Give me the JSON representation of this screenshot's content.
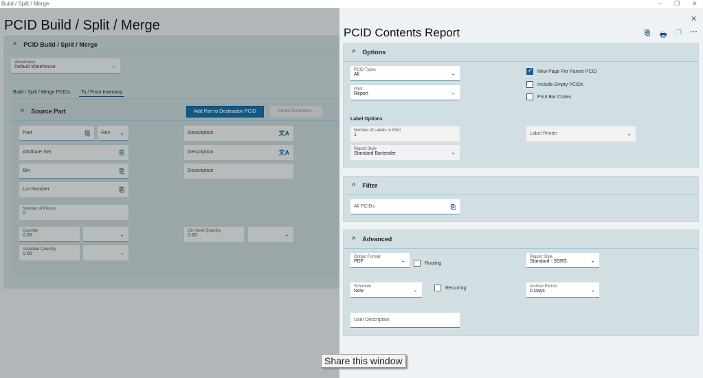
{
  "titlebar": {
    "title": "Build / Split / Merge",
    "minimize": "–",
    "maximize": "❐",
    "close": "✕"
  },
  "left": {
    "page_title": "PCID Build / Split / Merge",
    "section_title": "PCID Build / Split / Merge",
    "warehouse": {
      "label": "Warehouse",
      "value": "Default Warehouse"
    },
    "tabs": [
      {
        "label": "Build / Split / Merge PCIDs"
      },
      {
        "label": "To / From Inventory"
      }
    ],
    "source": {
      "title": "Source Part",
      "add_button": "Add Part to Destination PCID",
      "serial_button": "Serial Numbers...",
      "part": "Part",
      "rev": "Rev",
      "attribute_set": "Attribute Set",
      "bin": "Bin",
      "lot": "Lot Number",
      "descriptions": [
        "Description",
        "Description",
        "Description"
      ],
      "pieces": {
        "label": "Number of Pieces",
        "value": "0"
      },
      "quantity": {
        "label": "Quantity",
        "value": "0.00"
      },
      "available": {
        "label": "Available Quantity",
        "value": "0.00"
      },
      "onhand": {
        "label": "On Hand Quantity",
        "value": "0.00"
      }
    }
  },
  "report": {
    "title": "PCID Contents Report",
    "close": "✕",
    "options": {
      "title": "Options",
      "pcid_types": {
        "label": "PCID Types",
        "value": "All"
      },
      "print": {
        "label": "Print",
        "value": "Report"
      },
      "checkboxes": [
        {
          "label": "New Page Per Parent PCID",
          "checked": true
        },
        {
          "label": "Include Empty PCIDs",
          "checked": false
        },
        {
          "label": "Print Bar Codes",
          "checked": false
        }
      ],
      "label_options": "Label Options",
      "num_labels": {
        "label": "Number of Labels to Print",
        "value": "1"
      },
      "report_style": {
        "label": "Report Style",
        "value": "Standard Bartender"
      },
      "label_printer": "Label Printer"
    },
    "filter": {
      "title": "Filter",
      "all_pcids": "All PCIDs"
    },
    "advanced": {
      "title": "Advanced",
      "output_format": {
        "label": "Output Format",
        "value": "PDF"
      },
      "routing": "Routing",
      "report_style": {
        "label": "Report Style",
        "value": "Standard - SSRS"
      },
      "schedule": {
        "label": "Schedule",
        "value": "Now"
      },
      "recurring": "Recurring",
      "archive": {
        "label": "Archive Period",
        "value": "0 Days"
      },
      "user_description": "User Description"
    }
  },
  "tooltip": "Share this window",
  "colors": {
    "accent": "#0f5080",
    "card": "#d1dfe3"
  }
}
